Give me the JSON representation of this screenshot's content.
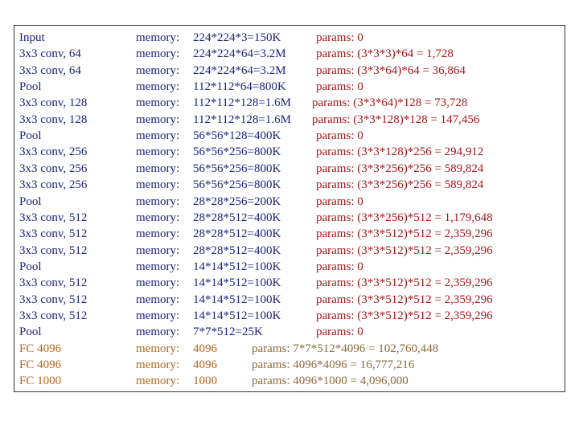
{
  "colors": {
    "layer": "#1a237e",
    "memory": "#1a237e",
    "params": "#a4161a",
    "fc": "#b5651d",
    "fc_params": "#8b6a3a"
  },
  "memory_label": "memory:",
  "rows": [
    {
      "layer": "Input",
      "memory": "224*224*3=150K",
      "params": "params: 0",
      "kind": "conv"
    },
    {
      "layer": "3x3 conv, 64",
      "memory": "224*224*64=3.2M",
      "params": "params: (3*3*3)*64 = 1,728",
      "kind": "conv"
    },
    {
      "layer": "3x3 conv, 64",
      "memory": "224*224*64=3.2M",
      "params": "params: (3*3*64)*64 = 36,864",
      "kind": "conv"
    },
    {
      "layer": "Pool",
      "memory": "112*112*64=800K",
      "params": "params: 0",
      "kind": "conv"
    },
    {
      "layer": "3x3 conv, 128",
      "memory": "112*112*128=1.6M",
      "params": "params: (3*3*64)*128 = 73,728",
      "kind": "conv_shift"
    },
    {
      "layer": "3x3 conv, 128",
      "memory": "112*112*128=1.6M",
      "params": "params: (3*3*128)*128 = 147,456",
      "kind": "conv_shift"
    },
    {
      "layer": "Pool",
      "memory": "56*56*128=400K",
      "params": "params: 0",
      "kind": "conv"
    },
    {
      "layer": "3x3 conv, 256",
      "memory": "56*56*256=800K",
      "params": "params: (3*3*128)*256 = 294,912",
      "kind": "conv"
    },
    {
      "layer": "3x3 conv, 256",
      "memory": "56*56*256=800K",
      "params": "params: (3*3*256)*256 = 589,824",
      "kind": "conv"
    },
    {
      "layer": "3x3 conv, 256",
      "memory": "56*56*256=800K",
      "params": "params: (3*3*256)*256 = 589,824",
      "kind": "conv"
    },
    {
      "layer": "Pool",
      "memory": "28*28*256=200K",
      "params": "params: 0",
      "kind": "conv"
    },
    {
      "layer": "3x3 conv, 512",
      "memory": "28*28*512=400K",
      "params": "params: (3*3*256)*512 = 1,179,648",
      "kind": "conv"
    },
    {
      "layer": "3x3 conv, 512",
      "memory": "28*28*512=400K",
      "params": "params: (3*3*512)*512 = 2,359,296",
      "kind": "conv"
    },
    {
      "layer": "3x3 conv, 512",
      "memory": "28*28*512=400K",
      "params": "params: (3*3*512)*512 = 2,359,296",
      "kind": "conv"
    },
    {
      "layer": "Pool",
      "memory": "14*14*512=100K",
      "params": "params: 0",
      "kind": "conv"
    },
    {
      "layer": "3x3 conv, 512",
      "memory": "14*14*512=100K",
      "params": "params: (3*3*512)*512 = 2,359,296",
      "kind": "conv"
    },
    {
      "layer": "3x3 conv, 512",
      "memory": "14*14*512=100K",
      "params": "params: (3*3*512)*512 = 2,359,296",
      "kind": "conv"
    },
    {
      "layer": "3x3 conv, 512",
      "memory": "14*14*512=100K",
      "params": "params: (3*3*512)*512 = 2,359,296",
      "kind": "conv"
    },
    {
      "layer": "Pool",
      "memory": "7*7*512=25K",
      "params": "params: 0",
      "kind": "conv"
    },
    {
      "layer": "FC 4096",
      "memory": "4096",
      "params": "params: 7*7*512*4096 = 102,760,448",
      "kind": "fc"
    },
    {
      "layer": "FC 4096",
      "memory": "4096",
      "params": "params: 4096*4096 = 16,777,216",
      "kind": "fc"
    },
    {
      "layer": "FC 1000",
      "memory": "1000",
      "params": "params: 4096*1000 = 4,096,000",
      "kind": "fc"
    }
  ]
}
